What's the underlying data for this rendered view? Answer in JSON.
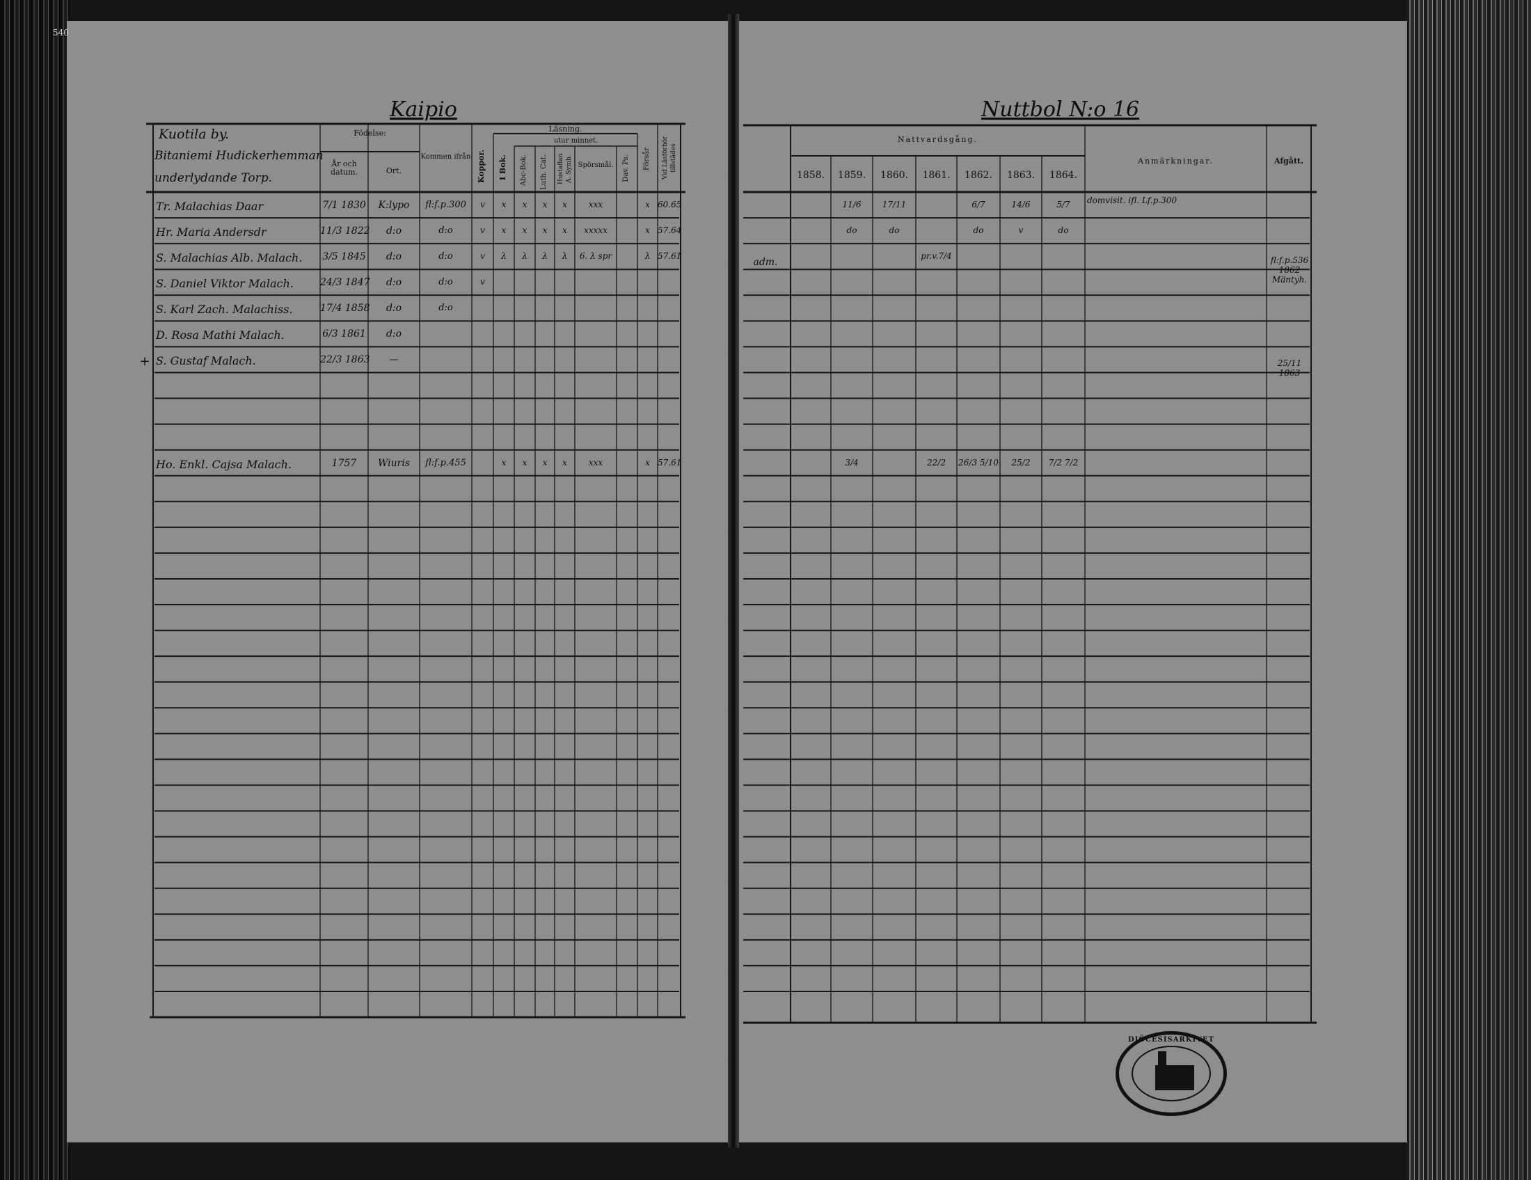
{
  "page_number": "540",
  "left_page": {
    "place_title": "Kaipio",
    "village_header": [
      "Kuotila by.",
      "Bitaniemi Hudickerhemman",
      "underlydande Torp."
    ],
    "headers": {
      "fodelse": "Födelse:",
      "ar_och_datum": "År och datum.",
      "ort": "Ort.",
      "kommen_ifran": "Kommen ifrån",
      "koppor": "Koppor.",
      "lasning": "Läsning.",
      "utur_minnet": "utur minnet.",
      "i_bok": "I Bok.",
      "abc_bok": "Abc-Bok.",
      "luth_cat": "Luth. Cat.",
      "hustaflan": "Hustaflan A. Symb.",
      "sporsmal": "Spörsmål.",
      "dav_ps": "Dav. Ps.",
      "forsar": "Försår",
      "vid_lasforhor": "Vid Läsförhör tillstädes"
    },
    "rows": [
      {
        "mark": "",
        "name": "Tr. Malachias Daar",
        "birth": "7/1 1830",
        "place": "K:lypo",
        "from": "fl:f.p.300",
        "koppor": "v",
        "ibok": "x",
        "abc": "x",
        "luth": "x",
        "husta": "x",
        "spors": "xxx",
        "dav": "",
        "forsar": "x",
        "vid": "60.65"
      },
      {
        "mark": "",
        "name": "Hr. Maria Andersdr",
        "birth": "11/3 1822",
        "place": "d:o",
        "from": "d:o",
        "koppor": "v",
        "ibok": "x",
        "abc": "x",
        "luth": "x",
        "husta": "x",
        "spors": "xxxxx",
        "dav": "",
        "forsar": "x",
        "vid": "57.64"
      },
      {
        "mark": "",
        "name": "S. Malachias Alb. Malach.",
        "birth": "3/5 1845",
        "place": "d:o",
        "from": "d:o",
        "koppor": "v",
        "ibok": "λ",
        "abc": "λ",
        "luth": "λ",
        "husta": "λ",
        "spors": "6. λ spr",
        "dav": "",
        "forsar": "λ",
        "vid": "57.61"
      },
      {
        "mark": "",
        "name": "S. Daniel Viktor Malach.",
        "birth": "24/3 1847",
        "place": "d:o",
        "from": "d:o",
        "koppor": "v",
        "ibok": "",
        "abc": "",
        "luth": "",
        "husta": "",
        "spors": "",
        "dav": "",
        "forsar": "",
        "vid": ""
      },
      {
        "mark": "",
        "name": "S. Karl Zach. Malachiss.",
        "birth": "17/4 1858",
        "place": "d:o",
        "from": "d:o",
        "koppor": "",
        "ibok": "",
        "abc": "",
        "luth": "",
        "husta": "",
        "spors": "",
        "dav": "",
        "forsar": "",
        "vid": ""
      },
      {
        "mark": "",
        "name": "D. Rosa Mathi Malach.",
        "birth": "6/3 1861",
        "place": "d:o",
        "from": "",
        "koppor": "",
        "ibok": "",
        "abc": "",
        "luth": "",
        "husta": "",
        "spors": "",
        "dav": "",
        "forsar": "",
        "vid": ""
      },
      {
        "mark": "+",
        "name": "S. Gustaf Malach.",
        "birth": "22/3 1863",
        "place": "—",
        "from": "",
        "koppor": "",
        "ibok": "",
        "abc": "",
        "luth": "",
        "husta": "",
        "spors": "",
        "dav": "",
        "forsar": "",
        "vid": ""
      },
      {},
      {},
      {},
      {
        "mark": "",
        "name": "Ho. Enkl. Cajsa Malach.",
        "birth": "1757",
        "place": "Wiuris",
        "from": "fl:f.p.455",
        "koppor": "",
        "ibok": "x",
        "abc": "x",
        "luth": "x",
        "husta": "x",
        "spors": "xxx",
        "dav": "",
        "forsar": "x",
        "vid": "57.61"
      }
    ]
  },
  "right_page": {
    "place_title": "Nuttbol N:o 16",
    "headers": {
      "nattvardsgang": "Nattvardsgång.",
      "years": [
        "1858.",
        "1859.",
        "1860.",
        "1861.",
        "1862.",
        "1863.",
        "1864."
      ],
      "anmarkningar": "Anmärkningar.",
      "afgatt": "Afgått."
    },
    "rows": [
      {
        "outer": "",
        "y": [
          "",
          "11/6",
          "17/11",
          "",
          "6/7",
          "14/6",
          "5/7"
        ],
        "note": "domvisit. ifl. Lf.p.300",
        "afgatt": ""
      },
      {
        "outer": "",
        "y": [
          "",
          "do",
          "do",
          "",
          "do",
          "v",
          "do"
        ],
        "note": "",
        "afgatt": ""
      },
      {
        "outer": "adm.",
        "y": [
          "",
          "",
          "",
          "pr.v.7/4",
          "",
          "",
          ""
        ],
        "note": "",
        "afgatt": "fl:f.p.536 1862 Mäntyh."
      },
      {},
      {},
      {},
      {
        "outer": "",
        "y": [
          "",
          "",
          "",
          "",
          "",
          "",
          ""
        ],
        "note": "",
        "afgatt": "25/11 1863"
      },
      {},
      {},
      {},
      {
        "outer": "",
        "y": [
          "",
          "3/4",
          "",
          "22/2",
          "26/3 5/10",
          "25/2",
          "7/2 7/2"
        ],
        "note": "",
        "afgatt": ""
      }
    ]
  },
  "stamp": {
    "text": "DIÖCESISARKIVET"
  },
  "colors": {
    "page": "#8e8e8e",
    "ink": "#111111",
    "binding": "#151515"
  }
}
